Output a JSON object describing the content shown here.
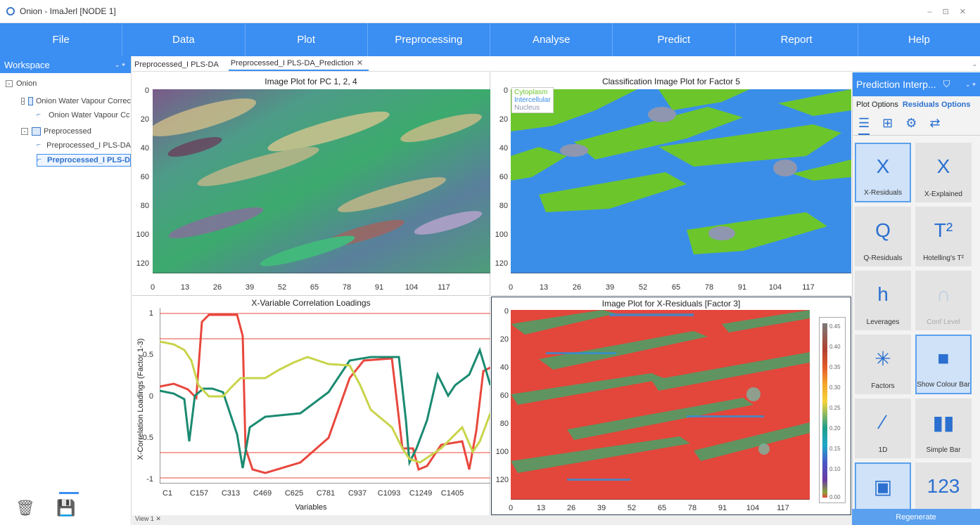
{
  "window": {
    "title": "Onion - ImaJerl [NODE 1]",
    "controls": "– ⊡ ✕"
  },
  "menu": [
    "File",
    "Data",
    "Plot",
    "Preprocessing",
    "Analyse",
    "Predict",
    "Report",
    "Help"
  ],
  "workspace": {
    "title": "Workspace",
    "tree": [
      {
        "label": "Onion",
        "level": 0,
        "toggle": "-"
      },
      {
        "label": "Onion Water Vapour Correc",
        "level": 1,
        "toggle": "-"
      },
      {
        "label": "Onion Water Vapour Cc",
        "level": 2
      },
      {
        "label": "Preprocessed",
        "level": 1,
        "toggle": "-"
      },
      {
        "label": "Preprocessed_I PLS-DA",
        "level": 2
      },
      {
        "label": "Preprocessed_I PLS-D",
        "level": 2,
        "selected": true
      }
    ]
  },
  "tabs": [
    {
      "label": "Preprocessed_I PLS-DA",
      "active": false
    },
    {
      "label": "Preprocessed_I PLS-DA_Prediction",
      "active": true,
      "close": "✕"
    }
  ],
  "plots": {
    "p1": {
      "title": "Image Plot for PC 1, 2, 4",
      "yticks": [
        "0",
        "20",
        "40",
        "60",
        "80",
        "100",
        "120"
      ],
      "xticks": [
        "0",
        "13",
        "26",
        "39",
        "52",
        "65",
        "78",
        "91",
        "104",
        "117"
      ]
    },
    "p2": {
      "title": "Classification Image Plot for Factor 5",
      "yticks": [
        "0",
        "20",
        "40",
        "60",
        "80",
        "100",
        "120"
      ],
      "xticks": [
        "0",
        "13",
        "26",
        "39",
        "52",
        "65",
        "78",
        "91",
        "104",
        "117"
      ],
      "legend": [
        {
          "label": "Cytoplasm",
          "color": "#6cc62b"
        },
        {
          "label": "Intercellular",
          "color": "#3b8ee8"
        },
        {
          "label": "Nucleus",
          "color": "#8f96b0"
        }
      ]
    },
    "p3": {
      "title": "X-Variable Correlation Loadings",
      "ylabel": "X-Correlation Loadings (Factor 1-3)",
      "xlabel": "Variables",
      "yticks": [
        "1",
        "0.5",
        "0",
        "-0.5",
        "-1"
      ],
      "xticks": [
        "C1",
        "C157",
        "C313",
        "C469",
        "C625",
        "C781",
        "C937",
        "C1093",
        "C1249",
        "C1405"
      ]
    },
    "p4": {
      "title": "Image Plot for X-Residuals [Factor 3]",
      "yticks": [
        "0",
        "20",
        "40",
        "60",
        "80",
        "100",
        "120"
      ],
      "xticks": [
        "0",
        "13",
        "26",
        "39",
        "52",
        "65",
        "78",
        "91",
        "104",
        "117"
      ],
      "colorbar": [
        "0.45",
        "0.40",
        "0.35",
        "0.30",
        "0.25",
        "0.20",
        "0.15",
        "0.10",
        "0.00"
      ]
    }
  },
  "right_panel": {
    "title": "Prediction Interp...",
    "plot_options": "Plot Options",
    "residual_options": "Residuals Options",
    "tiles": [
      {
        "label": "X-Residuals",
        "icon": "x-residuals-icon",
        "glyph": "X",
        "selected": true
      },
      {
        "label": "X-Explained",
        "icon": "x-explained-icon",
        "glyph": "X"
      },
      {
        "label": "Q-Residuals",
        "icon": "q-residuals-icon",
        "glyph": "Q"
      },
      {
        "label": "Hotelling's T²",
        "icon": "hotelling-icon",
        "glyph": "T²"
      },
      {
        "label": "Leverages",
        "icon": "leverages-icon",
        "glyph": "h"
      },
      {
        "label": "Conf Level",
        "icon": "conf-level-icon",
        "glyph": "∩",
        "disabled": true
      },
      {
        "label": "Factors",
        "icon": "factors-icon",
        "glyph": "✳"
      },
      {
        "label": "Show Colour Bar",
        "icon": "colour-bar-icon",
        "glyph": "■",
        "selected": true
      },
      {
        "label": "1D",
        "icon": "line-1d-icon",
        "glyph": "∕"
      },
      {
        "label": "Simple Bar",
        "icon": "simple-bar-icon",
        "glyph": "▮▮"
      },
      {
        "label": "Image Plot",
        "icon": "image-plot-icon",
        "glyph": "▣",
        "selected": true
      },
      {
        "label": "Show Numbers",
        "icon": "show-numbers-icon",
        "glyph": "123"
      }
    ],
    "regenerate": "Regenerate"
  },
  "status": {
    "view": "View 1 ✕"
  }
}
